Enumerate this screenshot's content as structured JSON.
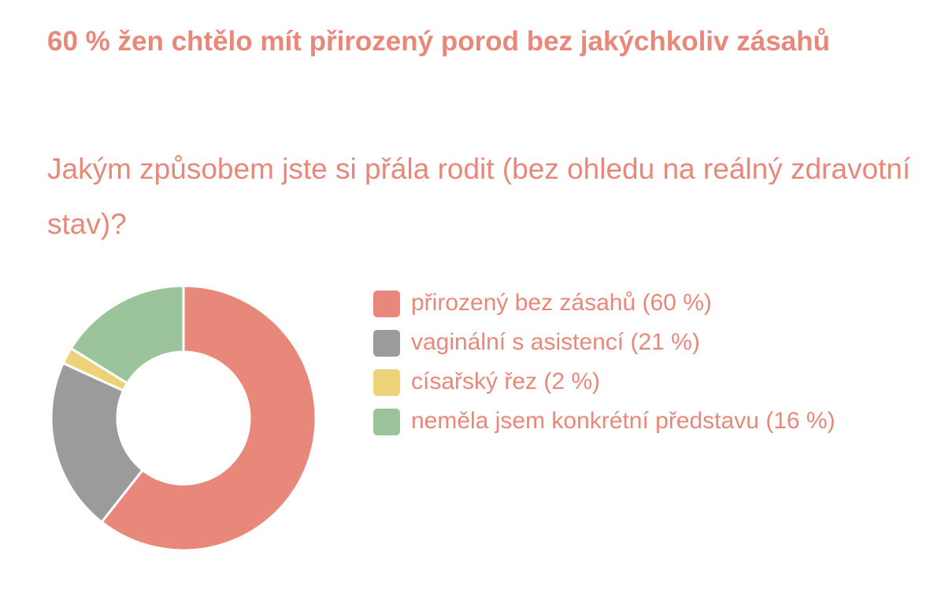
{
  "chart_data": {
    "type": "donut",
    "title": "60 % žen chtělo mít přirozený porod bez jakýchkoliv zásahů",
    "subtitle": "Jakým způsobem jste si přála rodit (bez ohledu na reálný zdravotní stav)?",
    "categories": [
      "přirozený bez zásahů (60 %)",
      "vaginální s asistencí (21 %)",
      "císařský řez (2 %)",
      "neměla jsem konkrétní představu (16 %)"
    ],
    "values": [
      60,
      21,
      2,
      16
    ],
    "colors": [
      "#e8887a",
      "#9b9b9b",
      "#eed27a",
      "#9bc49a"
    ]
  }
}
